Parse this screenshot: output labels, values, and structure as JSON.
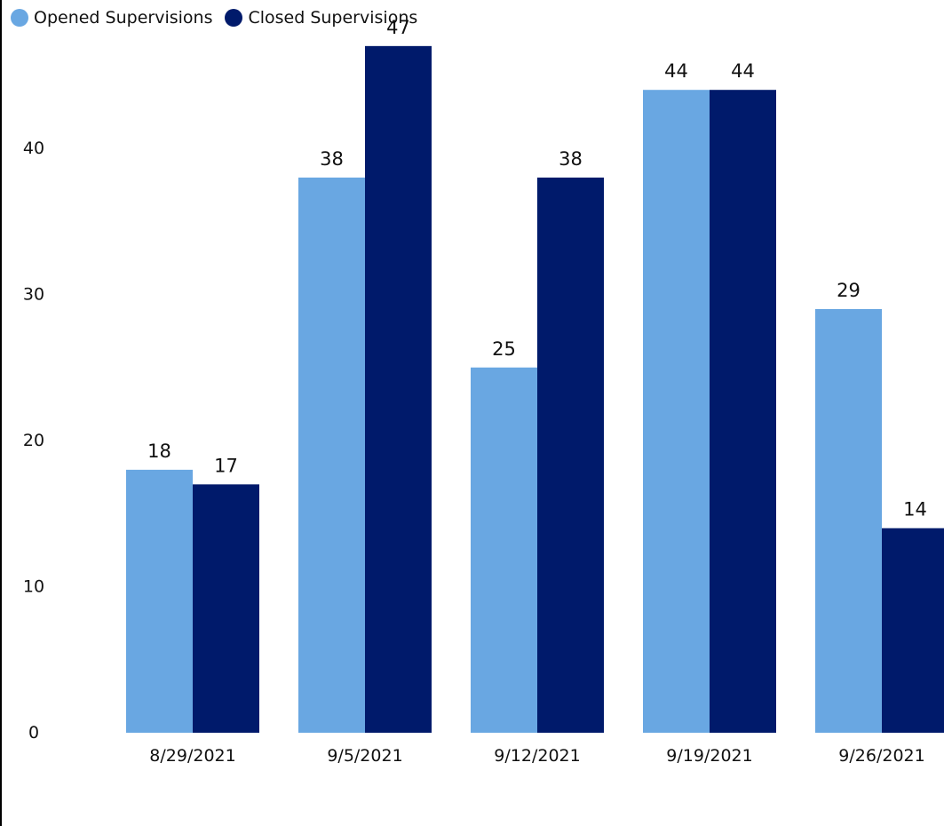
{
  "chart_data": {
    "type": "bar",
    "title": "",
    "xlabel": "",
    "ylabel": "",
    "categories": [
      "8/29/2021",
      "9/5/2021",
      "9/12/2021",
      "9/19/2021",
      "9/26/2021"
    ],
    "series": [
      {
        "name": "Opened Supervisions",
        "color": "#69A7E2",
        "values": [
          18,
          38,
          25,
          44,
          29
        ]
      },
      {
        "name": "Closed Supervisions",
        "color": "#001A6B",
        "values": [
          17,
          47,
          38,
          44,
          14
        ]
      }
    ],
    "y_ticks": [
      0,
      10,
      20,
      30,
      40
    ],
    "ylim": [
      0,
      50
    ],
    "grid": false,
    "legend_position": "top-left",
    "data_labels": true
  }
}
